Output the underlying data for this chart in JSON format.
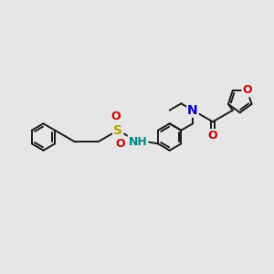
{
  "background_color": "#e6e6e6",
  "bond_color": "#1a1a1a",
  "figsize": [
    3.0,
    3.0
  ],
  "dpi": 100,
  "lw": 1.4,
  "atom_colors": {
    "S": "#b8a000",
    "O": "#cc0000",
    "N": "#0000cc",
    "NH": "#008888",
    "H": "#008888"
  }
}
